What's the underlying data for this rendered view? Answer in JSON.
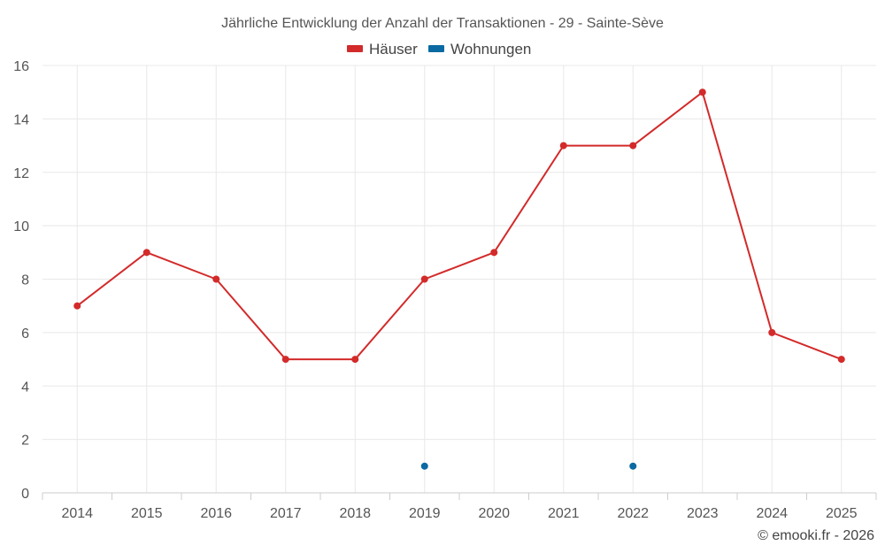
{
  "chart_data": {
    "type": "line",
    "title": "Jährliche Entwicklung der Anzahl der Transaktionen - 29 - Sainte-Sève",
    "categories": [
      "2014",
      "2015",
      "2016",
      "2017",
      "2018",
      "2019",
      "2020",
      "2021",
      "2022",
      "2023",
      "2024",
      "2025"
    ],
    "series": [
      {
        "name": "Häuser",
        "color": "#d32a2a",
        "values": [
          7,
          9,
          8,
          5,
          5,
          8,
          9,
          13,
          13,
          15,
          6,
          5
        ]
      },
      {
        "name": "Wohnungen",
        "color": "#0a6aa1",
        "values": [
          null,
          null,
          null,
          null,
          null,
          1,
          null,
          null,
          1,
          null,
          null,
          null
        ]
      }
    ],
    "ylim": [
      0,
      16
    ],
    "yticks": [
      0,
      2,
      4,
      6,
      8,
      10,
      12,
      14,
      16
    ],
    "xlabel": "",
    "ylabel": "",
    "grid": true,
    "legend": "top-center",
    "credit": "© emooki.fr - 2026"
  }
}
